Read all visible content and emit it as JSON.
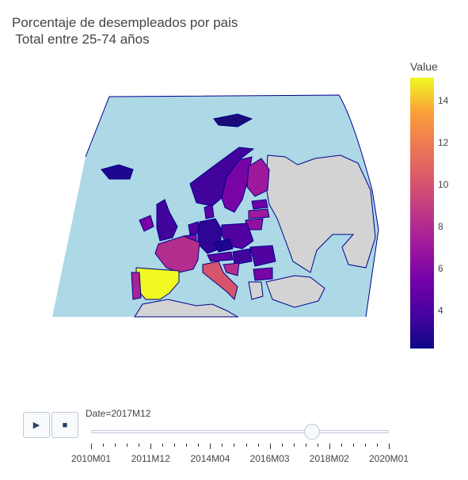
{
  "title": "Porcentaje de desempleados por pais\n Total entre 25-74 años",
  "colorbar": {
    "title": "Value",
    "ticks": [
      "14",
      "12",
      "10",
      "8",
      "6",
      "4"
    ]
  },
  "slider": {
    "current_label": "Date=2017M12",
    "tick_labels": [
      "2010M01",
      "2011M12",
      "2014M04",
      "2016M03",
      "2018M02",
      "2020M01"
    ],
    "current_index_fraction": 0.74
  },
  "controls": {
    "play_icon": "play-icon",
    "stop_icon": "stop-icon"
  },
  "colors": {
    "ocean": "#add8e6",
    "no_data": "#d3d3d3",
    "border": "#00008b",
    "spain": "#f0f921"
  },
  "chart_data": {
    "type": "choropleth",
    "scope": "europe",
    "colorscale": "Plasma",
    "zmin": 2,
    "zmax": 15,
    "colorbar_title": "Value",
    "frame": "2017M12",
    "regions": [
      {
        "name": "Spain",
        "value": 15
      },
      {
        "name": "France",
        "value": 8
      },
      {
        "name": "Portugal",
        "value": 7.5
      },
      {
        "name": "Italy",
        "value": 10
      },
      {
        "name": "Greece",
        "value": 20
      },
      {
        "name": "Ireland",
        "value": 5.5
      },
      {
        "name": "United Kingdom",
        "value": 3.5
      },
      {
        "name": "Iceland",
        "value": 2.5
      },
      {
        "name": "Norway",
        "value": 3.5
      },
      {
        "name": "Sweden",
        "value": 5.5
      },
      {
        "name": "Finland",
        "value": 7
      },
      {
        "name": "Denmark",
        "value": 4.5
      },
      {
        "name": "Germany",
        "value": 3
      },
      {
        "name": "Netherlands",
        "value": 4
      },
      {
        "name": "Belgium",
        "value": 6
      },
      {
        "name": "Poland",
        "value": 4
      },
      {
        "name": "Czechia",
        "value": 2.5
      },
      {
        "name": "Austria",
        "value": 4.5
      },
      {
        "name": "Hungary",
        "value": 3.5
      },
      {
        "name": "Romania",
        "value": 4
      },
      {
        "name": "Croatia",
        "value": 8
      },
      {
        "name": "Estonia",
        "value": 5
      },
      {
        "name": "Latvia",
        "value": 7
      },
      {
        "name": "Lithuania",
        "value": 6.5
      },
      {
        "name": "Bulgaria",
        "value": 5.5
      }
    ]
  }
}
